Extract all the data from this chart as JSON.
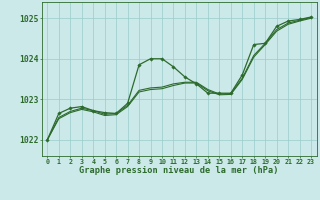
{
  "title": "Graphe pression niveau de la mer (hPa)",
  "hours": [
    0,
    1,
    2,
    3,
    4,
    5,
    6,
    7,
    8,
    9,
    10,
    11,
    12,
    13,
    14,
    15,
    16,
    17,
    18,
    19,
    20,
    21,
    22,
    23
  ],
  "yticks": [
    1022,
    1023,
    1024,
    1025
  ],
  "ylim": [
    1021.6,
    1025.4
  ],
  "xlim": [
    -0.5,
    23.5
  ],
  "bg_color": "#cce9e9",
  "grid_color": "#99cccc",
  "line_color": "#2d6b2d",
  "series_jagged": [
    1022.0,
    1022.65,
    1022.78,
    1022.82,
    1022.72,
    1022.67,
    1022.65,
    1022.9,
    1023.85,
    1024.0,
    1024.0,
    1023.8,
    1023.55,
    1023.38,
    1023.15,
    1023.15,
    1023.15,
    1023.6,
    1024.35,
    1024.38,
    1024.8,
    1024.93,
    1024.97,
    1025.03
  ],
  "series_smooth_upper": [
    1022.0,
    1022.55,
    1022.7,
    1022.78,
    1022.72,
    1022.63,
    1022.65,
    1022.85,
    1023.22,
    1023.28,
    1023.3,
    1023.38,
    1023.42,
    1023.42,
    1023.24,
    1023.13,
    1023.14,
    1023.52,
    1024.08,
    1024.38,
    1024.72,
    1024.88,
    1024.95,
    1025.02
  ],
  "series_smooth_lower": [
    1022.0,
    1022.52,
    1022.67,
    1022.75,
    1022.69,
    1022.6,
    1022.62,
    1022.82,
    1023.18,
    1023.24,
    1023.26,
    1023.34,
    1023.4,
    1023.4,
    1023.21,
    1023.11,
    1023.12,
    1023.49,
    1024.04,
    1024.35,
    1024.68,
    1024.85,
    1024.93,
    1025.0
  ]
}
